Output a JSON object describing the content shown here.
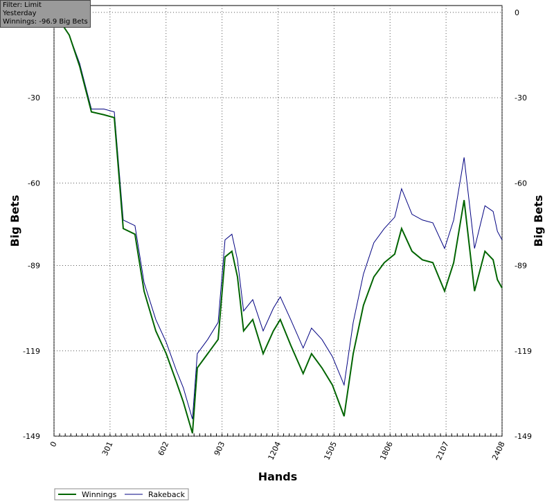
{
  "info": {
    "filter": "Filter: Limit",
    "period": "Yesterday",
    "winnings": "Winnings: -96.9 Big Bets"
  },
  "chart_data": {
    "type": "line",
    "xlabel": "Hands",
    "ylabel": "Big Bets",
    "x": [
      0,
      82,
      138,
      201,
      268,
      324,
      372,
      435,
      484,
      547,
      603,
      658,
      695,
      744,
      770,
      826,
      882,
      919,
      956,
      986,
      1019,
      1068,
      1124,
      1179,
      1216,
      1272,
      1339,
      1384,
      1440,
      1496,
      1559,
      1608,
      1663,
      1719,
      1775,
      1831,
      1868,
      1924,
      1980,
      2036,
      2099,
      2148,
      2204,
      2260,
      2316,
      2360,
      2383,
      2408
    ],
    "series": [
      {
        "name": "Winnings",
        "color": "#006400",
        "values": [
          0,
          -8,
          -19,
          -35,
          -36,
          -37,
          -76,
          -78,
          -98,
          -112,
          -120,
          -130,
          -137,
          -148,
          -125,
          -120,
          -115,
          -86,
          -84,
          -93,
          -112,
          -108,
          -120,
          -112,
          -108,
          -117,
          -127,
          -120,
          -125,
          -131,
          -142,
          -120,
          -103,
          -93,
          -88,
          -85,
          -76,
          -84,
          -87,
          -88,
          -98,
          -88,
          -66,
          -98,
          -84,
          -87,
          -94,
          -96.9
        ]
      },
      {
        "name": "Rakeback",
        "color": "#000080",
        "values": [
          0,
          -8,
          -18,
          -34,
          -34,
          -35,
          -73,
          -75,
          -95,
          -108,
          -116,
          -126,
          -132,
          -143,
          -120,
          -115,
          -109,
          -80,
          -78,
          -87,
          -105,
          -101,
          -112,
          -104,
          -100,
          -108,
          -118,
          -111,
          -115,
          -121,
          -131,
          -109,
          -92,
          -81,
          -76,
          -72,
          -62,
          -71,
          -73,
          -74,
          -83,
          -73,
          -51,
          -83,
          -68,
          -70,
          -77,
          -80
        ]
      }
    ],
    "xlim": [
      0,
      2408
    ],
    "ylim": [
      -149,
      2.4
    ],
    "xticks": [
      0,
      301,
      602,
      903,
      1204,
      1505,
      1806,
      2107,
      2408
    ],
    "yticks": [
      0,
      -30,
      -60,
      -89,
      -119,
      -149
    ],
    "grid": true
  }
}
